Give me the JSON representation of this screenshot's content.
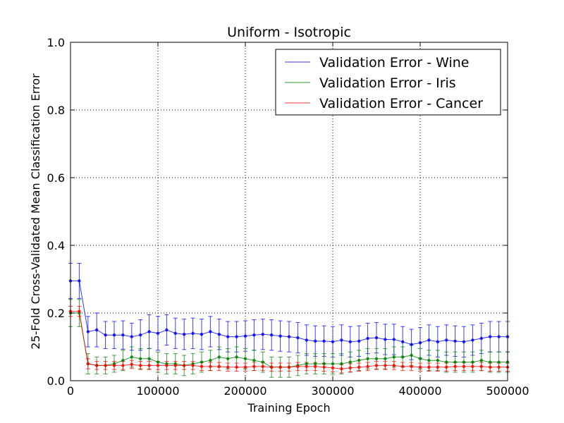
{
  "chart_data": {
    "type": "line",
    "title": "Uniform - Isotropic",
    "xlabel": "Training Epoch",
    "ylabel": "25-Fold Cross-Validated Mean Classification Error",
    "xlim": [
      0,
      500000
    ],
    "ylim": [
      0.0,
      1.0
    ],
    "grid": true,
    "legend_position": "top-right",
    "x_ticks": [
      0,
      100000,
      200000,
      300000,
      400000,
      500000
    ],
    "x_tick_labels": [
      "0",
      "100000",
      "200000",
      "300000",
      "400000",
      "500000"
    ],
    "y_ticks": [
      0.0,
      0.2,
      0.4,
      0.6,
      0.8,
      1.0
    ],
    "y_tick_labels": [
      "0.0",
      "0.2",
      "0.4",
      "0.6",
      "0.8",
      "1.0"
    ],
    "x": [
      0,
      10000,
      20000,
      30000,
      40000,
      50000,
      60000,
      70000,
      80000,
      90000,
      100000,
      110000,
      120000,
      130000,
      140000,
      150000,
      160000,
      170000,
      180000,
      190000,
      200000,
      210000,
      220000,
      230000,
      240000,
      250000,
      260000,
      270000,
      280000,
      290000,
      300000,
      310000,
      320000,
      330000,
      340000,
      350000,
      360000,
      370000,
      380000,
      390000,
      400000,
      410000,
      420000,
      430000,
      440000,
      450000,
      460000,
      470000,
      480000,
      490000,
      500000
    ],
    "series": [
      {
        "name": "Validation Error - Wine",
        "color": "#0000ff",
        "values": [
          0.295,
          0.295,
          0.145,
          0.15,
          0.135,
          0.135,
          0.135,
          0.13,
          0.135,
          0.145,
          0.14,
          0.15,
          0.14,
          0.137,
          0.14,
          0.137,
          0.145,
          0.137,
          0.13,
          0.13,
          0.132,
          0.135,
          0.137,
          0.135,
          0.132,
          0.13,
          0.127,
          0.12,
          0.117,
          0.117,
          0.115,
          0.12,
          0.115,
          0.117,
          0.125,
          0.127,
          0.122,
          0.122,
          0.115,
          0.107,
          0.112,
          0.12,
          0.115,
          0.12,
          0.117,
          0.115,
          0.12,
          0.125,
          0.13,
          0.13,
          0.13
        ],
        "errors": [
          0.052,
          0.052,
          0.045,
          0.05,
          0.04,
          0.04,
          0.042,
          0.04,
          0.045,
          0.05,
          0.05,
          0.045,
          0.045,
          0.045,
          0.045,
          0.045,
          0.045,
          0.045,
          0.045,
          0.045,
          0.045,
          0.045,
          0.045,
          0.045,
          0.045,
          0.045,
          0.045,
          0.045,
          0.045,
          0.045,
          0.045,
          0.045,
          0.045,
          0.045,
          0.045,
          0.045,
          0.045,
          0.045,
          0.045,
          0.045,
          0.045,
          0.045,
          0.045,
          0.045,
          0.045,
          0.045,
          0.045,
          0.045,
          0.045,
          0.045,
          0.045
        ]
      },
      {
        "name": "Validation Error - Iris",
        "color": "#008000",
        "values": [
          0.2,
          0.2,
          0.05,
          0.045,
          0.045,
          0.05,
          0.06,
          0.07,
          0.065,
          0.065,
          0.055,
          0.05,
          0.05,
          0.045,
          0.05,
          0.055,
          0.06,
          0.07,
          0.065,
          0.07,
          0.065,
          0.06,
          0.055,
          0.04,
          0.04,
          0.04,
          0.045,
          0.05,
          0.05,
          0.05,
          0.05,
          0.05,
          0.055,
          0.06,
          0.065,
          0.065,
          0.065,
          0.07,
          0.07,
          0.075,
          0.065,
          0.06,
          0.06,
          0.055,
          0.055,
          0.055,
          0.055,
          0.06,
          0.055,
          0.055,
          0.055
        ],
        "errors": [
          0.04,
          0.04,
          0.03,
          0.025,
          0.025,
          0.025,
          0.03,
          0.03,
          0.03,
          0.03,
          0.03,
          0.03,
          0.03,
          0.03,
          0.03,
          0.03,
          0.03,
          0.03,
          0.03,
          0.03,
          0.03,
          0.03,
          0.03,
          0.03,
          0.03,
          0.03,
          0.03,
          0.03,
          0.03,
          0.03,
          0.03,
          0.03,
          0.03,
          0.03,
          0.03,
          0.03,
          0.03,
          0.03,
          0.03,
          0.03,
          0.03,
          0.03,
          0.03,
          0.03,
          0.03,
          0.03,
          0.03,
          0.03,
          0.03,
          0.03,
          0.03
        ]
      },
      {
        "name": "Validation Error - Cancer",
        "color": "#ff0000",
        "values": [
          0.205,
          0.205,
          0.05,
          0.045,
          0.045,
          0.045,
          0.045,
          0.048,
          0.045,
          0.045,
          0.045,
          0.045,
          0.045,
          0.045,
          0.045,
          0.042,
          0.042,
          0.042,
          0.04,
          0.04,
          0.04,
          0.042,
          0.042,
          0.04,
          0.04,
          0.04,
          0.042,
          0.042,
          0.042,
          0.04,
          0.038,
          0.035,
          0.038,
          0.04,
          0.042,
          0.045,
          0.045,
          0.045,
          0.042,
          0.042,
          0.04,
          0.04,
          0.04,
          0.04,
          0.042,
          0.042,
          0.042,
          0.042,
          0.04,
          0.04,
          0.04
        ],
        "errors": [
          0.015,
          0.015,
          0.015,
          0.012,
          0.012,
          0.012,
          0.012,
          0.012,
          0.012,
          0.012,
          0.012,
          0.012,
          0.012,
          0.012,
          0.012,
          0.012,
          0.012,
          0.012,
          0.012,
          0.012,
          0.012,
          0.012,
          0.012,
          0.012,
          0.012,
          0.012,
          0.012,
          0.012,
          0.012,
          0.012,
          0.012,
          0.012,
          0.012,
          0.012,
          0.012,
          0.012,
          0.012,
          0.012,
          0.012,
          0.012,
          0.012,
          0.012,
          0.012,
          0.012,
          0.012,
          0.012,
          0.012,
          0.012,
          0.012,
          0.012,
          0.012
        ]
      }
    ]
  }
}
